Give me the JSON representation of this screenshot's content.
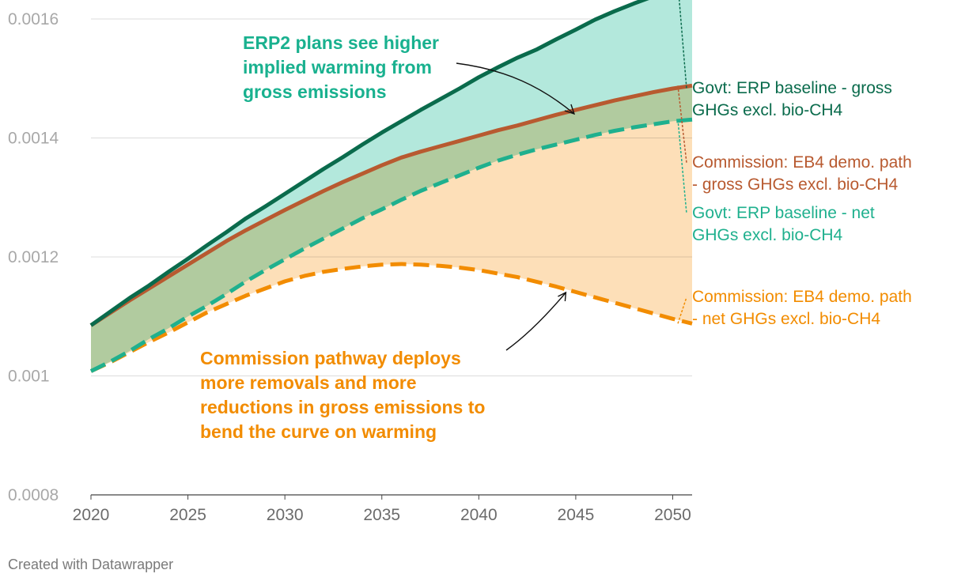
{
  "chart_data": {
    "type": "area",
    "title": "",
    "xlabel": "",
    "ylabel": "",
    "xlim": [
      2020,
      2051
    ],
    "ylim": [
      0.0008,
      0.0016
    ],
    "x_ticks": [
      2020,
      2025,
      2030,
      2035,
      2040,
      2045,
      2050
    ],
    "x_tick_labels": [
      "2020",
      "2025",
      "2030",
      "2035",
      "2040",
      "2045",
      "2050"
    ],
    "y_ticks": [
      0.0008,
      0.001,
      0.0012,
      0.0014,
      0.0016
    ],
    "y_tick_labels": [
      "0.0008",
      "0.001",
      "0.0012",
      "0.0014",
      "0.0016"
    ],
    "grid": true,
    "x": [
      2020,
      2021,
      2022,
      2023,
      2024,
      2025,
      2026,
      2027,
      2028,
      2029,
      2030,
      2031,
      2032,
      2033,
      2034,
      2035,
      2036,
      2037,
      2038,
      2039,
      2040,
      2041,
      2042,
      2043,
      2044,
      2045,
      2046,
      2047,
      2048,
      2049,
      2050,
      2051
    ],
    "series": [
      {
        "name": "Govt: ERP baseline - gross GHGs excl. bio-CH4",
        "label_lines": [
          "Govt: ERP baseline - gross",
          "GHGs excl. bio-CH4"
        ],
        "color": "#0a6b4c",
        "style": "solid",
        "values": [
          0.001085,
          0.001108,
          0.001131,
          0.001152,
          0.001175,
          0.001197,
          0.00122,
          0.001242,
          0.001265,
          0.001285,
          0.001306,
          0.001327,
          0.001348,
          0.001368,
          0.001389,
          0.001409,
          0.001428,
          0.001447,
          0.001465,
          0.001483,
          0.001502,
          0.001519,
          0.001535,
          0.001549,
          0.001566,
          0.001582,
          0.001599,
          0.001613,
          0.001626,
          0.001638,
          0.001651,
          0.00166
        ]
      },
      {
        "name": "Commission: EB4 demo. path - gross GHGs excl. bio-CH4",
        "label_lines": [
          "Commission: EB4 demo. path",
          "- gross GHGs excl. bio-CH4"
        ],
        "color": "#b85a30",
        "style": "solid",
        "values": [
          0.001085,
          0.001106,
          0.001127,
          0.001147,
          0.001167,
          0.001187,
          0.001207,
          0.001227,
          0.001245,
          0.001262,
          0.001279,
          0.001295,
          0.001311,
          0.001326,
          0.00134,
          0.001354,
          0.001367,
          0.001377,
          0.001386,
          0.001395,
          0.001404,
          0.001413,
          0.001421,
          0.00143,
          0.001439,
          0.001447,
          0.001455,
          0.001463,
          0.00147,
          0.001477,
          0.001483,
          0.001488
        ]
      },
      {
        "name": "Govt: ERP baseline - net GHGs excl. bio-CH4",
        "label_lines": [
          "Govt: ERP baseline - net",
          "GHGs excl. bio-CH4"
        ],
        "color": "#1fb08e",
        "style": "dashed",
        "values": [
          0.001008,
          0.001024,
          0.001042,
          0.001062,
          0.00108,
          0.0011,
          0.001118,
          0.001138,
          0.001159,
          0.001178,
          0.001196,
          0.001214,
          0.001231,
          0.001248,
          0.001265,
          0.00128,
          0.001296,
          0.001311,
          0.001324,
          0.001337,
          0.00135,
          0.001362,
          0.001372,
          0.001381,
          0.001389,
          0.001397,
          0.001405,
          0.001412,
          0.001418,
          0.001423,
          0.001428,
          0.001431
        ]
      },
      {
        "name": "Commission: EB4 demo. path - net GHGs excl. bio-CH4",
        "label_lines": [
          "Commission: EB4 demo. path",
          "- net GHGs excl. bio-CH4"
        ],
        "color": "#f28c00",
        "style": "dashed",
        "values": [
          0.001008,
          0.001023,
          0.00104,
          0.001057,
          0.001073,
          0.00109,
          0.001107,
          0.001121,
          0.001135,
          0.001147,
          0.001159,
          0.001168,
          0.001175,
          0.00118,
          0.001184,
          0.001187,
          0.001188,
          0.001187,
          0.001185,
          0.001182,
          0.001178,
          0.001172,
          0.001166,
          0.001158,
          0.00115,
          0.001141,
          0.001132,
          0.001123,
          0.001114,
          0.001105,
          0.001096,
          0.001088
        ]
      }
    ],
    "fills": [
      {
        "between": [
          "Govt: ERP baseline - gross GHGs excl. bio-CH4",
          "Govt: ERP baseline - net GHGs excl. bio-CH4"
        ],
        "color": "#b3e8dc"
      },
      {
        "between": [
          "Commission: EB4 demo. path - gross GHGs excl. bio-CH4",
          "Commission: EB4 demo. path - net GHGs excl. bio-CH4"
        ],
        "color": "#fdd9ab"
      }
    ],
    "annotations": [
      {
        "lines": [
          "ERP2 plans see higher",
          "implied warming from",
          "gross emissions"
        ],
        "color": "#19b18f",
        "points_to_year": 2045
      },
      {
        "lines": [
          "Commission pathway deploys",
          "more removals and more",
          "reductions in gross emissions to",
          "bend the curve on warming"
        ],
        "color": "#f28c00",
        "points_to_year": 2044
      }
    ]
  },
  "footer": {
    "credit": "Created with Datawrapper"
  }
}
